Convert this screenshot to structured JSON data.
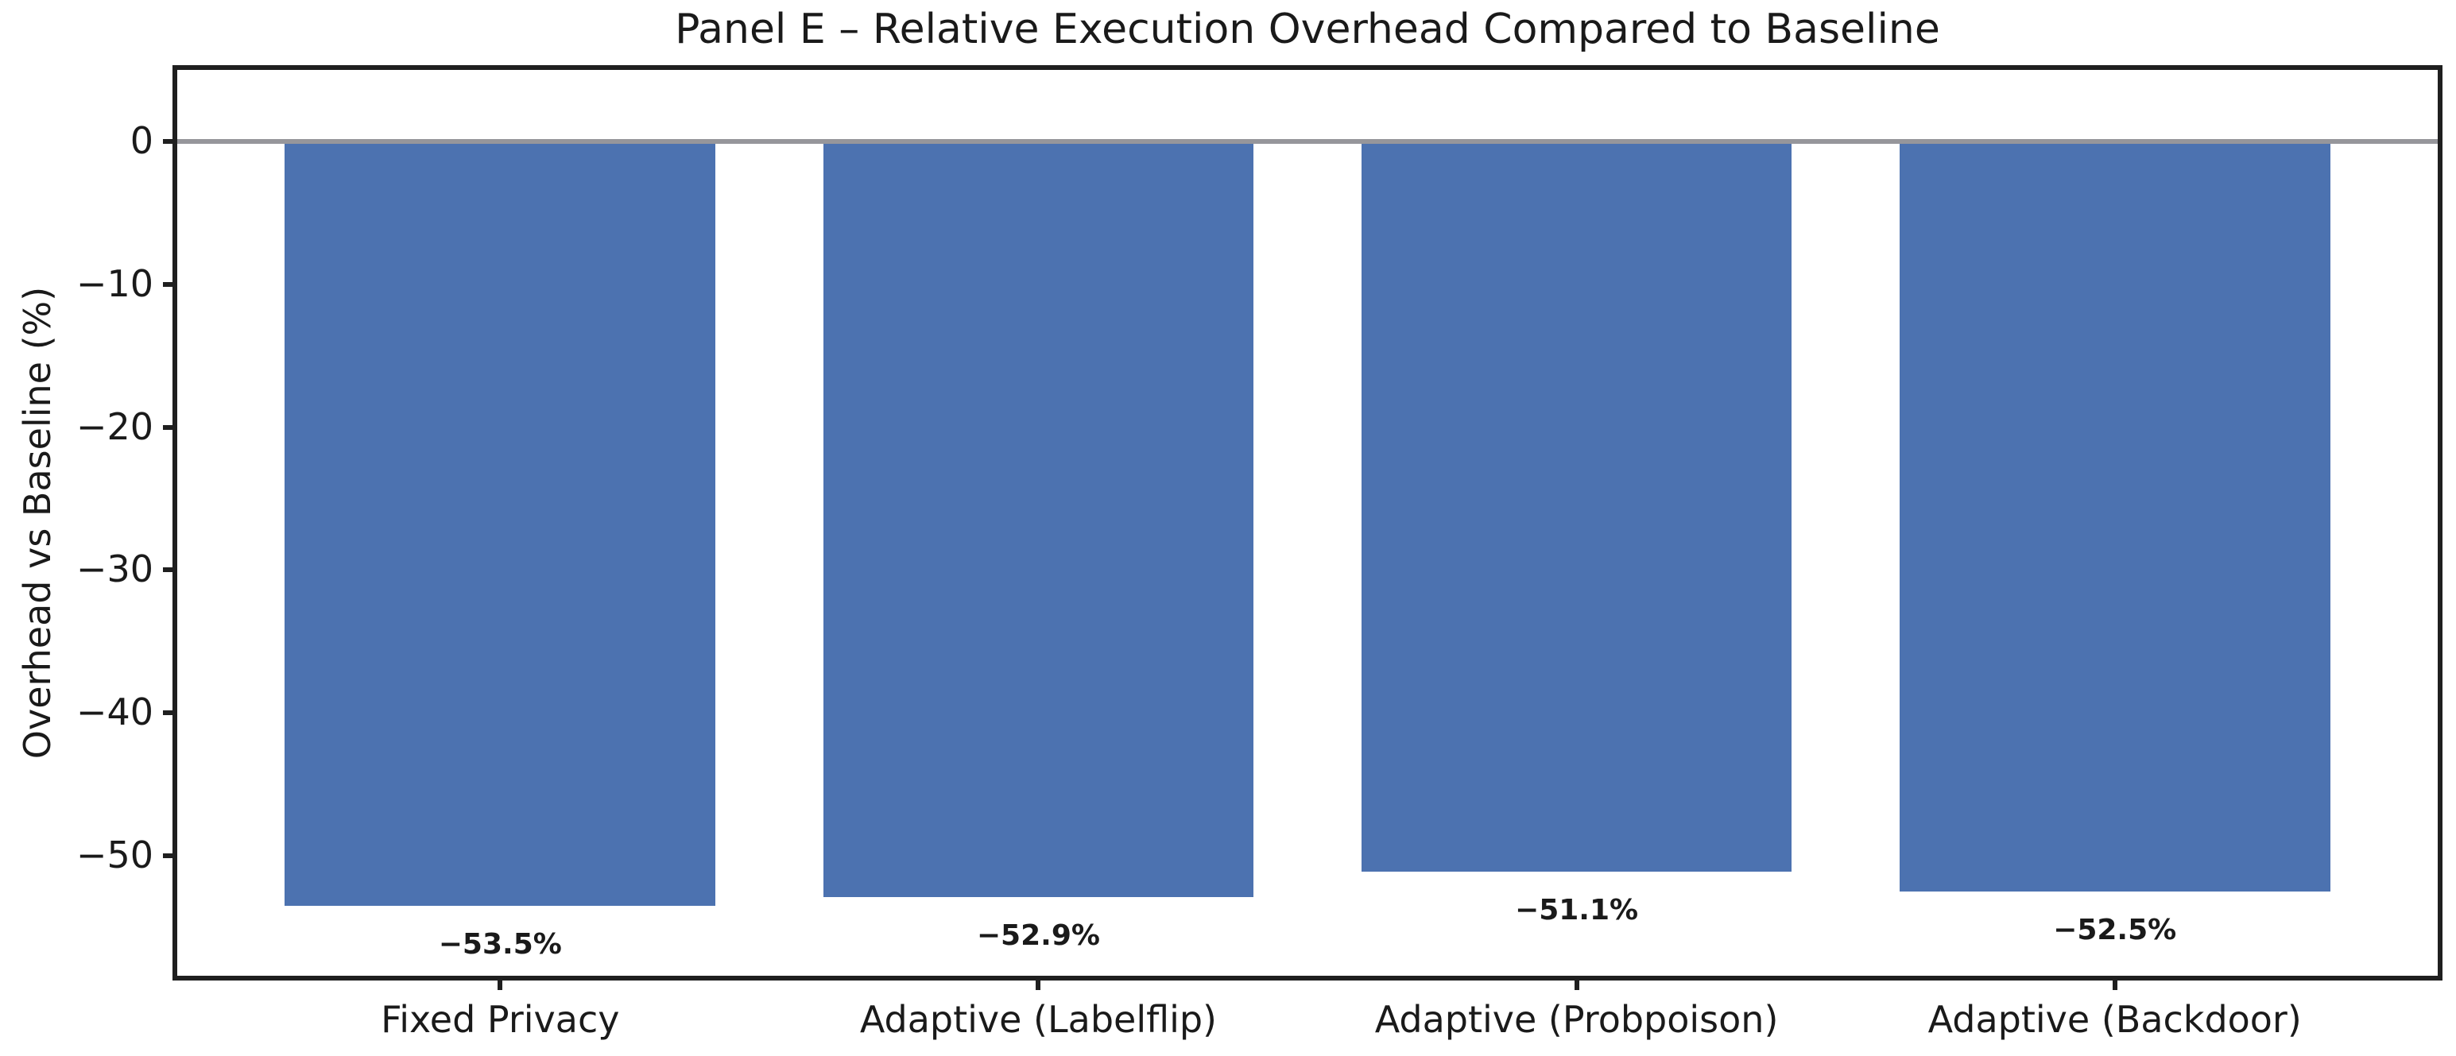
{
  "chart_data": {
    "type": "bar",
    "title": "Panel E – Relative Execution Overhead Compared to Baseline",
    "xlabel": "",
    "ylabel": "Overhead vs Baseline (%)",
    "categories": [
      "Fixed Privacy",
      "Adaptive (Labelflip)",
      "Adaptive (Probpoison)",
      "Adaptive (Backdoor)"
    ],
    "values": [
      -53.5,
      -52.9,
      -51.1,
      -52.5
    ],
    "bar_value_labels": [
      "−53.5%",
      "−52.9%",
      "−51.1%",
      "−52.5%"
    ],
    "ytick_values": [
      0,
      -10,
      -20,
      -30,
      -40,
      -50
    ],
    "ytick_labels": [
      "0",
      "−10",
      "−20",
      "−30",
      "−40",
      "−50"
    ],
    "ylim": [
      -58.4,
      5
    ],
    "xlim": [
      -0.6,
      3.6
    ],
    "bar_width_units": 0.8,
    "grid": false,
    "legend": false,
    "zero_line": true,
    "colors": {
      "bar": "#4C72B0",
      "zero_line": "#96969b",
      "spine": "#1f1f1f",
      "text": "#1a1a1a"
    }
  }
}
